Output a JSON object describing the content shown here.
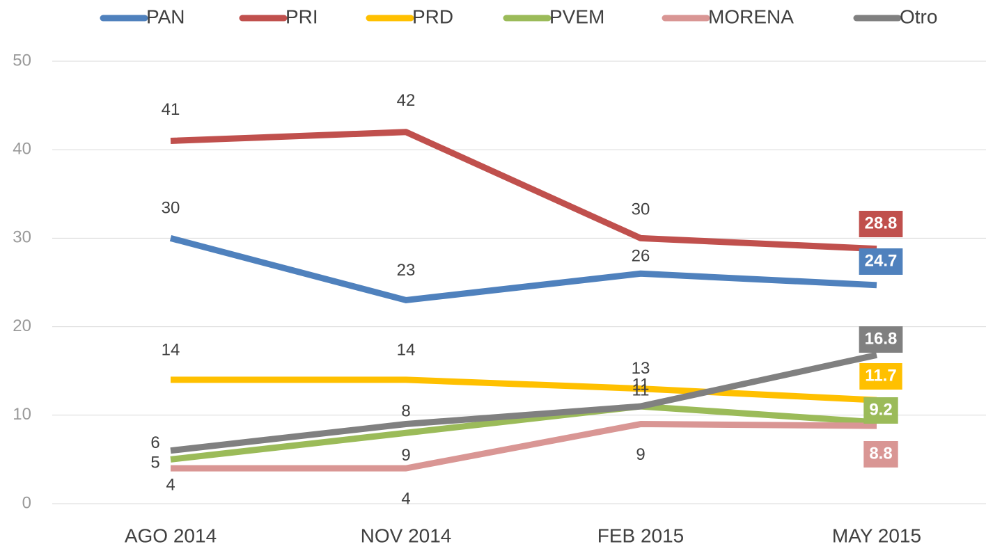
{
  "chart_data": {
    "type": "line",
    "categories": [
      "AGO 2014",
      "NOV 2014",
      "FEB 2015",
      "MAY 2015"
    ],
    "series": [
      {
        "name": "PAN",
        "color": "#4f81bd",
        "values": [
          30,
          23,
          26,
          24.7
        ]
      },
      {
        "name": "PRI",
        "color": "#c0504d",
        "values": [
          41,
          42,
          30,
          28.8
        ]
      },
      {
        "name": "PRD",
        "color": "#ffc000",
        "values": [
          14,
          14,
          13,
          11.7
        ]
      },
      {
        "name": "PVEM",
        "color": "#9bbb59",
        "values": [
          5,
          8,
          11,
          9.2
        ]
      },
      {
        "name": "MORENA",
        "color": "#d99694",
        "values": [
          4,
          4,
          9,
          8.8
        ]
      },
      {
        "name": "Otro",
        "color": "#808080",
        "values": [
          6,
          9,
          11,
          16.8
        ]
      }
    ],
    "ylim": [
      0,
      50
    ],
    "yticks": [
      0,
      10,
      20,
      30,
      40,
      50
    ],
    "grid": true,
    "legend": "top"
  }
}
